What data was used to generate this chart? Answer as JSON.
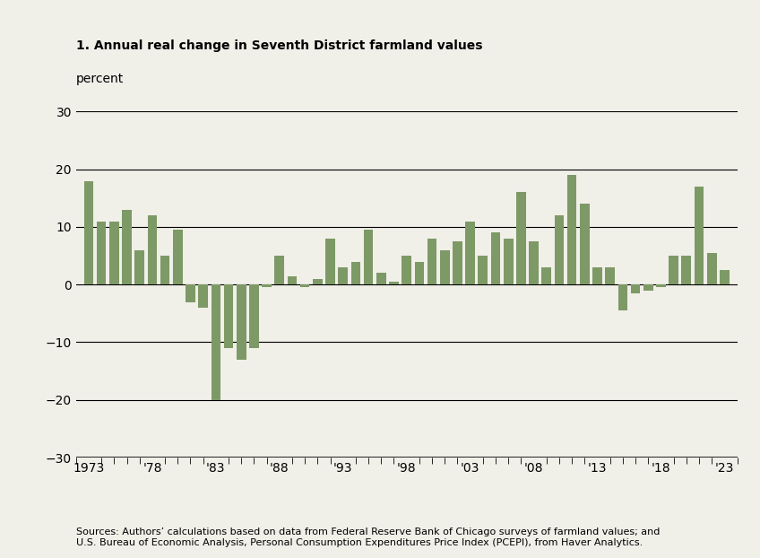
{
  "title": "1. Annual real change in Seventh District farmland values",
  "ylabel": "percent",
  "source": "Sources: Authors’ calculations based on data from Federal Reserve Bank of Chicago surveys of farmland values; and\nU.S. Bureau of Economic Analysis, Personal Consumption Expenditures Price Index (PCEPI), from Haver Analytics.",
  "years": [
    1973,
    1974,
    1975,
    1976,
    1977,
    1978,
    1979,
    1980,
    1981,
    1982,
    1983,
    1984,
    1985,
    1986,
    1987,
    1988,
    1989,
    1990,
    1991,
    1992,
    1993,
    1994,
    1995,
    1996,
    1997,
    1998,
    1999,
    2000,
    2001,
    2002,
    2003,
    2004,
    2005,
    2006,
    2007,
    2008,
    2009,
    2010,
    2011,
    2012,
    2013,
    2014,
    2015,
    2016,
    2017,
    2018,
    2019,
    2020,
    2021,
    2022,
    2023
  ],
  "values": [
    18,
    11,
    11,
    13,
    6,
    12,
    5,
    9.5,
    -3,
    -4,
    -20,
    -11,
    -13,
    -11,
    -0.5,
    5,
    1.5,
    -0.5,
    1,
    8,
    3,
    4,
    9.5,
    2,
    0.5,
    5,
    4,
    8,
    6,
    7.5,
    11,
    5,
    9,
    8,
    16,
    7.5,
    3,
    12,
    19,
    14,
    3,
    3,
    -4.5,
    -1.5,
    -1,
    -0.5,
    5,
    5,
    17,
    5.5,
    2.5
  ],
  "bar_color": "#7d9966",
  "bg_color": "#f0efe8",
  "ylim": [
    -30,
    30
  ],
  "yticks": [
    -30,
    -20,
    -10,
    0,
    10,
    20,
    30
  ],
  "ytick_labels": [
    "−30",
    "−20",
    "−10",
    "0",
    "10",
    "20",
    "30"
  ],
  "xtick_labels": [
    "1973",
    "'78",
    "'83",
    "'88",
    "'93",
    "'98",
    "'03",
    "'08",
    "'13",
    "'18",
    "'23"
  ],
  "xtick_positions": [
    1973,
    1978,
    1983,
    1988,
    1993,
    1998,
    2003,
    2008,
    2013,
    2018,
    2023
  ]
}
